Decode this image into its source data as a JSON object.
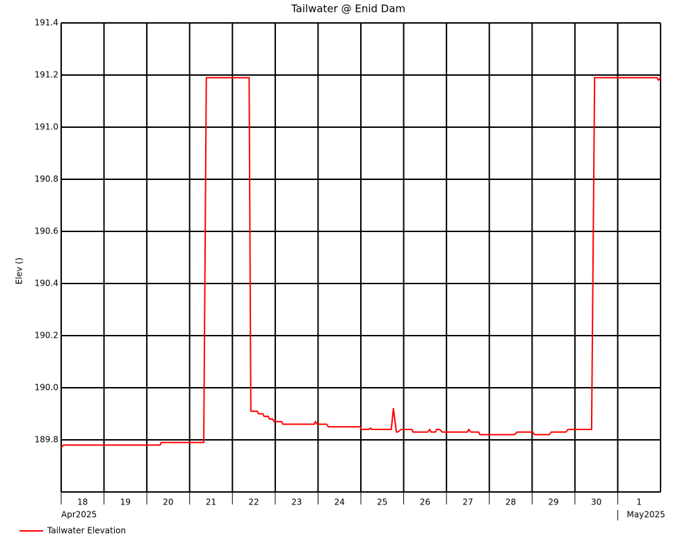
{
  "chart_data": {
    "type": "line",
    "title": "Tailwater @ Enid Dam",
    "y_label": "Elev ()",
    "xlim": [
      18,
      32
    ],
    "xticks": [
      18,
      19,
      20,
      21,
      22,
      23,
      24,
      25,
      26,
      27,
      28,
      29,
      30,
      {
        "value": 31,
        "label": "1"
      }
    ],
    "x_month_labels": [
      {
        "value": 18,
        "label": "Apr2025"
      },
      {
        "value": 31,
        "label": "May2025"
      }
    ],
    "ylim": [
      189.6,
      191.4
    ],
    "yticks": [
      {
        "value": 189.8,
        "label": "189.8"
      },
      {
        "value": 190,
        "label": "190.0"
      },
      190.2,
      190.4,
      190.6,
      190.8,
      {
        "value": 191,
        "label": "191.0"
      },
      191.2,
      191.4
    ],
    "grid": true,
    "legend": "bottom-left",
    "x": [
      18.0,
      18.05,
      20.31,
      20.34,
      21.33,
      21.39,
      22.39,
      22.43,
      22.58,
      22.61,
      22.71,
      22.74,
      22.84,
      22.86,
      22.94,
      22.97,
      23.15,
      23.18,
      23.91,
      23.94,
      23.98,
      24.2,
      24.24,
      24.98,
      25.02,
      25.18,
      25.23,
      25.26,
      25.71,
      25.76,
      25.83,
      25.86,
      25.94,
      26.19,
      26.22,
      26.56,
      26.61,
      26.64,
      26.74,
      26.77,
      26.84,
      26.9,
      27.49,
      27.52,
      27.57,
      27.75,
      27.78,
      28.59,
      28.65,
      29.01,
      29.06,
      29.4,
      29.45,
      29.79,
      29.84,
      30.39,
      30.46,
      31.92,
      31.95,
      32.0
    ],
    "series": [
      {
        "name": "Tailwater Elevation",
        "color": "#ff0000",
        "values": [
          189.77,
          189.78,
          189.78,
          189.79,
          189.79,
          191.19,
          191.19,
          189.91,
          189.91,
          189.9,
          189.9,
          189.89,
          189.89,
          189.88,
          189.88,
          189.87,
          189.87,
          189.86,
          189.86,
          189.87,
          189.86,
          189.86,
          189.85,
          189.85,
          189.84,
          189.84,
          189.845,
          189.84,
          189.84,
          189.92,
          189.83,
          189.83,
          189.84,
          189.84,
          189.83,
          189.83,
          189.84,
          189.83,
          189.83,
          189.84,
          189.84,
          189.83,
          189.83,
          189.84,
          189.83,
          189.83,
          189.82,
          189.82,
          189.83,
          189.83,
          189.82,
          189.82,
          189.83,
          189.83,
          189.84,
          189.84,
          191.19,
          191.19,
          191.18,
          191.19
        ]
      }
    ]
  }
}
